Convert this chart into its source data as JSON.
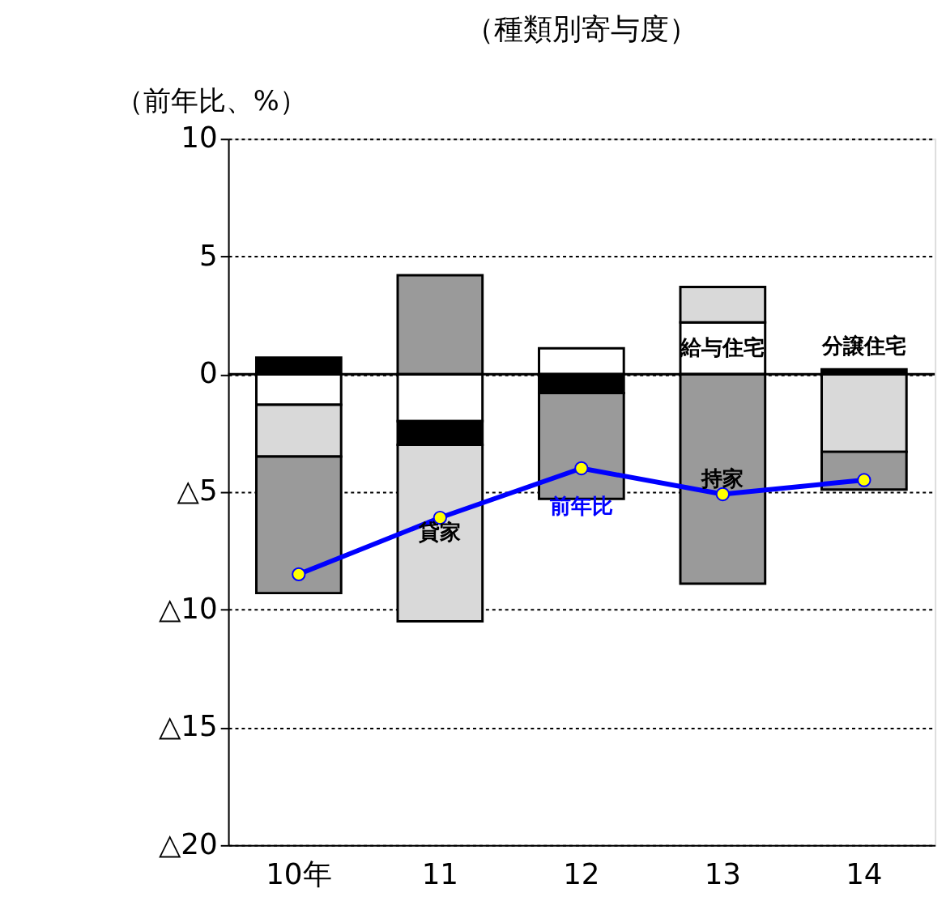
{
  "chart_data": {
    "type": "bar",
    "stacked": true,
    "title": "（種類別寄与度）",
    "ylabel": "（前年比、%）",
    "categories": [
      "10年",
      "11",
      "12",
      "13",
      "14"
    ],
    "series": [
      {
        "name": "給与住宅",
        "color": "#ffffff",
        "values": [
          -1.3,
          -2.0,
          1.1,
          2.2,
          null
        ]
      },
      {
        "name": "分譲住宅",
        "color": "#000000",
        "values": [
          0.7,
          -1.0,
          -0.8,
          null,
          0.2
        ]
      },
      {
        "name": "貸家",
        "color": "#d9d9d9",
        "values": [
          -2.2,
          -7.5,
          null,
          1.5,
          -3.3
        ]
      },
      {
        "name": "持家",
        "color": "#9a9a9a",
        "values": [
          -5.8,
          4.2,
          -4.5,
          -8.9,
          -1.6
        ]
      },
      {
        "name": "前年比",
        "type": "line",
        "color": "#0000ff",
        "marker": "circle",
        "values": [
          -8.5,
          -6.1,
          -4.0,
          -5.1,
          -4.5
        ]
      }
    ],
    "ylim": [
      -20,
      10
    ],
    "yticks": [
      {
        "value": -20,
        "label": "△20"
      },
      {
        "value": -15,
        "label": "△15"
      },
      {
        "value": -10,
        "label": "△10"
      },
      {
        "value": -5,
        "label": "△5"
      },
      0,
      5,
      10
    ],
    "grid": "y",
    "ref_lines": [
      {
        "axis": "y",
        "value": 0,
        "label": null
      }
    ]
  }
}
